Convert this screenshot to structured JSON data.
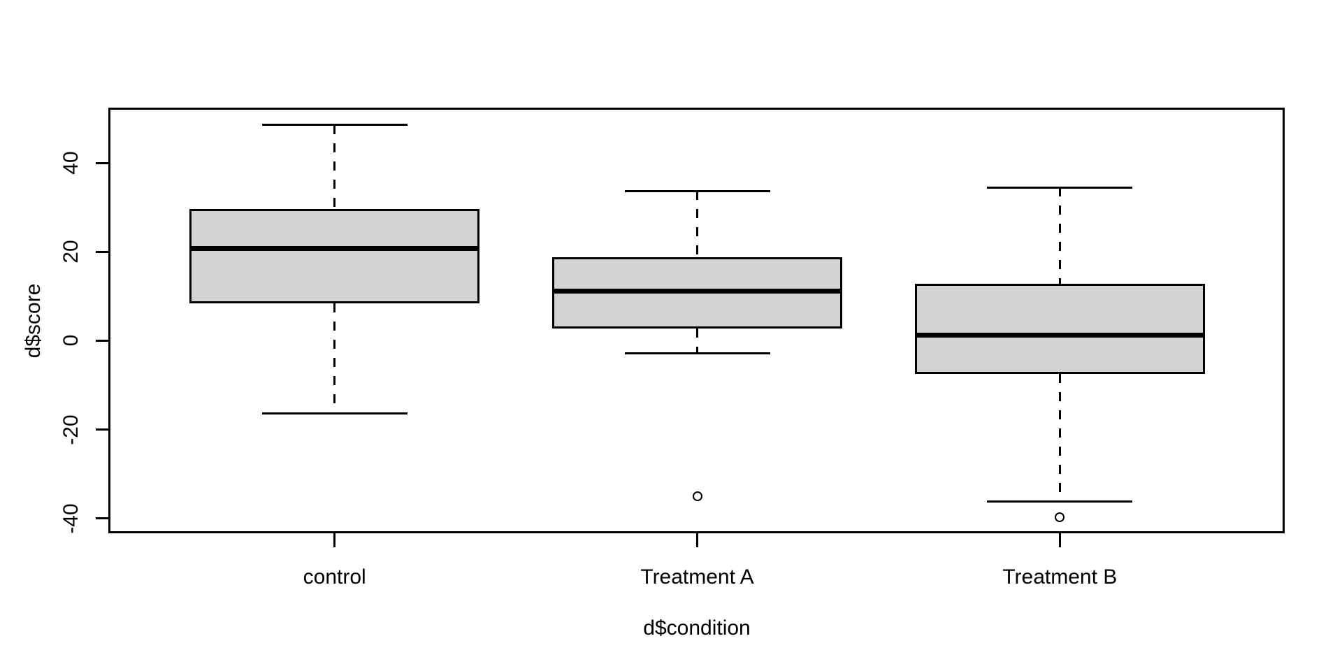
{
  "chart_data": {
    "type": "boxplot",
    "title": "",
    "xlabel": "d$condition",
    "ylabel": "d$score",
    "categories": [
      "control",
      "Treatment A",
      "Treatment B"
    ],
    "y_ticks": [
      40,
      20,
      0,
      -20,
      -40
    ],
    "ylim": [
      -43.35,
      52.15
    ],
    "grid": false,
    "legend": "none",
    "boxes": [
      {
        "category": "control",
        "lower_whisker": -16.4,
        "q1": 8.4,
        "median": 20.8,
        "q3": 29.6,
        "upper_whisker": 48.6,
        "outliers": []
      },
      {
        "category": "Treatment A",
        "lower_whisker": -2.8,
        "q1": 2.8,
        "median": 11.1,
        "q3": 18.8,
        "upper_whisker": 33.7,
        "outliers": [
          -35
        ]
      },
      {
        "category": "Treatment B",
        "lower_whisker": -36.2,
        "q1": -7.5,
        "median": 1.3,
        "q3": 12.8,
        "upper_whisker": 34.5,
        "outliers": [
          -39.8
        ]
      }
    ],
    "colors": {
      "box_fill": "#d3d3d3",
      "line": "#000000",
      "background": "#ffffff"
    }
  }
}
